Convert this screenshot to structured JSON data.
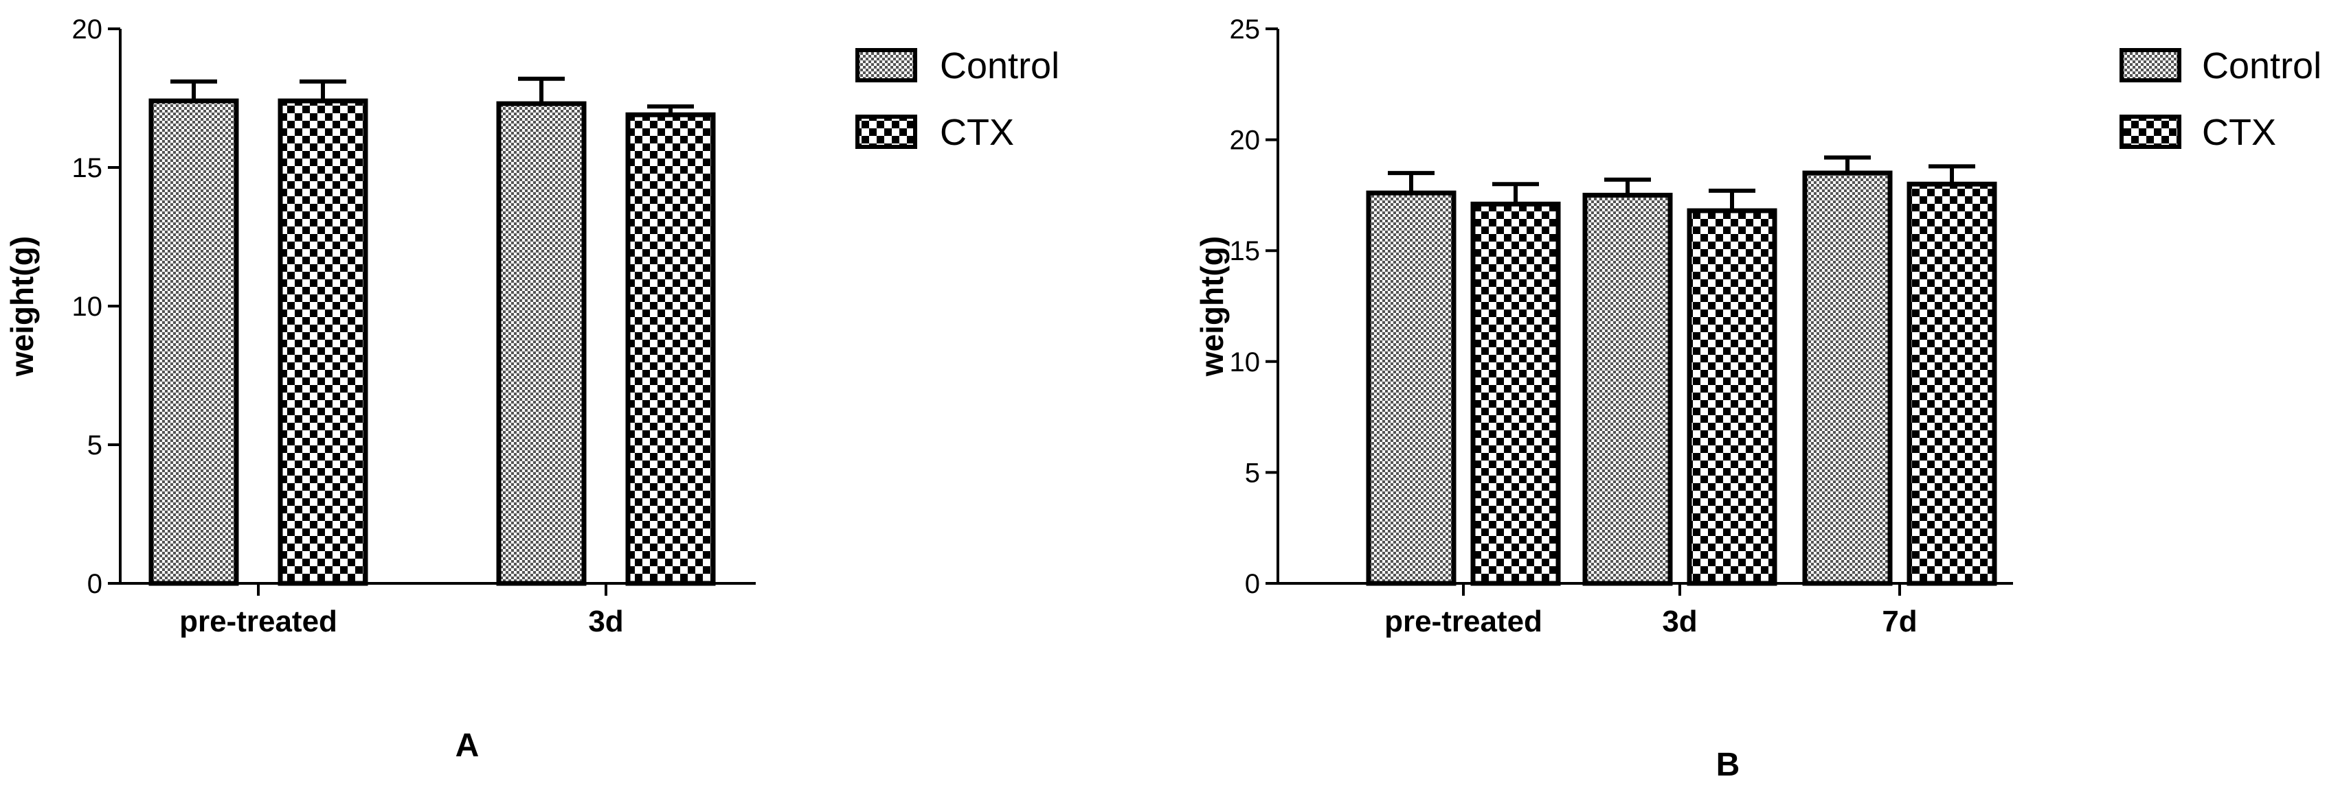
{
  "chart_data": [
    {
      "panel": "A",
      "type": "bar",
      "ylabel": "weight(g)",
      "ylim": [
        0,
        20
      ],
      "yticks": [
        0,
        5,
        10,
        15,
        20
      ],
      "categories": [
        "pre-treated",
        "3d"
      ],
      "series": [
        {
          "name": "Control",
          "values": [
            17.4,
            17.3
          ],
          "errors": [
            0.7,
            0.9
          ]
        },
        {
          "name": "CTX",
          "values": [
            17.4,
            16.9
          ],
          "errors": [
            0.7,
            0.3
          ]
        }
      ],
      "legend": "top-right"
    },
    {
      "panel": "B",
      "type": "bar",
      "ylabel": "weight(g)",
      "ylim": [
        0,
        25
      ],
      "yticks": [
        0,
        5,
        10,
        15,
        20,
        25
      ],
      "categories": [
        "pre-treated",
        "3d",
        "7d"
      ],
      "series": [
        {
          "name": "Control",
          "values": [
            17.6,
            17.5,
            18.5
          ],
          "errors": [
            0.9,
            0.7,
            0.7
          ]
        },
        {
          "name": "CTX",
          "values": [
            17.1,
            16.8,
            18.0
          ],
          "errors": [
            0.9,
            0.9,
            0.8
          ]
        }
      ],
      "legend": "top-right"
    }
  ]
}
